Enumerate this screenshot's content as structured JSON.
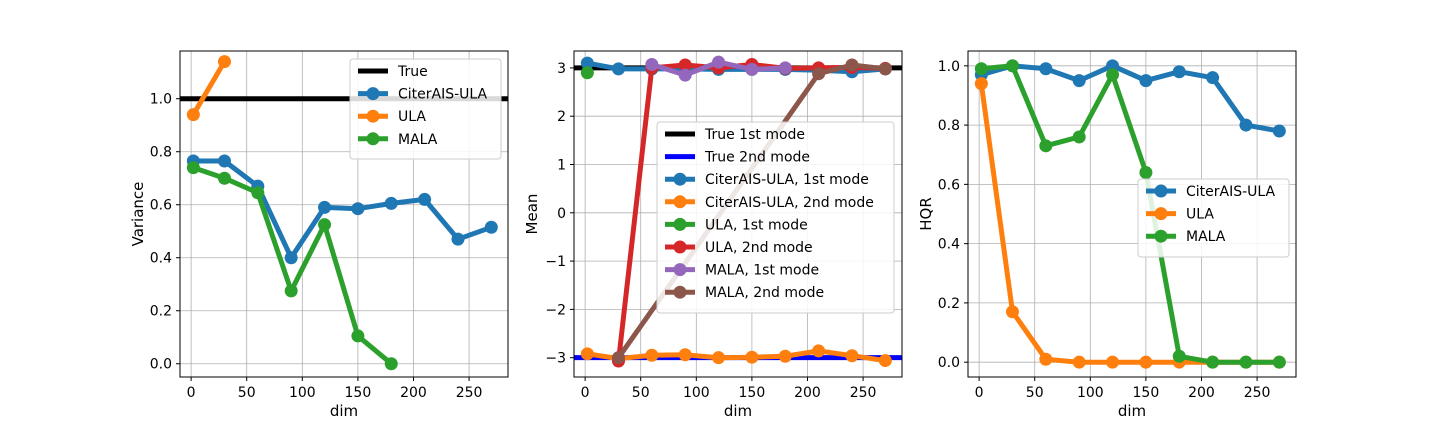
{
  "colors": {
    "true": "#000000",
    "true_second": "#0000ff",
    "blue": "#1f77b4",
    "orange": "#ff7f0e",
    "green": "#2ca02c",
    "red": "#d62728",
    "purple": "#9467bd",
    "brown": "#8c564b"
  },
  "chart_data": [
    {
      "type": "line",
      "xlabel": "dim",
      "ylabel": "Variance",
      "xlim": [
        -10,
        285
      ],
      "ylim": [
        -0.05,
        1.18
      ],
      "xticks": [
        0,
        50,
        100,
        150,
        200,
        250
      ],
      "yticks": [
        0.0,
        0.2,
        0.4,
        0.6,
        0.8,
        1.0
      ],
      "ytick_labels": [
        "0.0",
        "0.2",
        "0.4",
        "0.6",
        "0.8",
        "1.0"
      ],
      "grid": true,
      "legend_position": "upper-right",
      "series": [
        {
          "name": "True",
          "color": "#000000",
          "hline": 1.0
        },
        {
          "name": "CiterAIS-ULA",
          "color": "#1f77b4",
          "x": [
            2,
            30,
            60,
            90,
            120,
            150,
            180,
            210,
            240,
            270
          ],
          "values": [
            0.765,
            0.765,
            0.67,
            0.4,
            0.59,
            0.585,
            0.605,
            0.62,
            0.47,
            0.515
          ]
        },
        {
          "name": "ULA",
          "color": "#ff7f0e",
          "x": [
            2,
            30
          ],
          "values": [
            0.94,
            1.14
          ]
        },
        {
          "name": "MALA",
          "color": "#2ca02c",
          "x": [
            2,
            30,
            60,
            90,
            120,
            150,
            180
          ],
          "values": [
            0.74,
            0.7,
            0.645,
            0.275,
            0.525,
            0.105,
            0.0
          ]
        }
      ]
    },
    {
      "type": "line",
      "xlabel": "dim",
      "ylabel": "Mean",
      "xlim": [
        -10,
        285
      ],
      "ylim": [
        -3.4,
        3.35
      ],
      "xticks": [
        0,
        50,
        100,
        150,
        200,
        250
      ],
      "yticks": [
        -3,
        -2,
        -1,
        0,
        1,
        2,
        3
      ],
      "ytick_labels": [
        "−3",
        "−2",
        "−1",
        "0",
        "1",
        "2",
        "3"
      ],
      "grid": true,
      "legend_position": "center-right",
      "series": [
        {
          "name": "True 1st mode",
          "color": "#000000",
          "hline": 3
        },
        {
          "name": "True 2nd mode",
          "color": "#0000ff",
          "hline": -3
        },
        {
          "name": "CiterAIS-ULA, 1st mode",
          "color": "#1f77b4",
          "x": [
            2,
            30,
            60,
            90,
            120,
            150,
            180,
            210,
            240,
            270
          ],
          "values": [
            3.1,
            2.98,
            2.98,
            2.98,
            2.97,
            2.97,
            2.97,
            2.95,
            2.92,
            2.98
          ]
        },
        {
          "name": "CiterAIS-ULA, 2nd mode",
          "color": "#ff7f0e",
          "x": [
            2,
            30,
            60,
            90,
            120,
            150,
            180,
            210,
            240,
            270
          ],
          "values": [
            -2.92,
            -3.02,
            -2.95,
            -2.94,
            -3.0,
            -2.99,
            -2.97,
            -2.86,
            -2.96,
            -3.06
          ]
        },
        {
          "name": "ULA, 1st mode",
          "color": "#2ca02c",
          "x": [
            2
          ],
          "values": [
            2.9
          ]
        },
        {
          "name": "ULA, 2nd mode",
          "color": "#d62728",
          "x": [
            30,
            60,
            90,
            120,
            150,
            180,
            210,
            240,
            270
          ],
          "values": [
            -3.07,
            3.0,
            3.06,
            3.0,
            3.07,
            2.99,
            3.0,
            3.01,
            2.99
          ]
        },
        {
          "name": "MALA, 1st mode",
          "color": "#9467bd",
          "x": [
            60,
            90,
            120,
            150,
            180
          ],
          "values": [
            3.07,
            2.85,
            3.12,
            2.97,
            3.0
          ]
        },
        {
          "name": "MALA, 2nd mode",
          "color": "#8c564b",
          "x": [
            30,
            210,
            240,
            270
          ],
          "values": [
            -3.0,
            2.88,
            3.06,
            2.98
          ]
        }
      ]
    },
    {
      "type": "line",
      "xlabel": "dim",
      "ylabel": "HQR",
      "xlim": [
        -10,
        285
      ],
      "ylim": [
        -0.05,
        1.05
      ],
      "xticks": [
        0,
        50,
        100,
        150,
        200,
        250
      ],
      "yticks": [
        0.0,
        0.2,
        0.4,
        0.6,
        0.8,
        1.0
      ],
      "ytick_labels": [
        "0.0",
        "0.2",
        "0.4",
        "0.6",
        "0.8",
        "1.0"
      ],
      "grid": true,
      "legend_position": "center-right",
      "series": [
        {
          "name": "CiterAIS-ULA",
          "color": "#1f77b4",
          "x": [
            2,
            30,
            60,
            90,
            120,
            150,
            180,
            210,
            240,
            270
          ],
          "values": [
            0.97,
            1.0,
            0.99,
            0.95,
            1.0,
            0.95,
            0.98,
            0.96,
            0.8,
            0.78
          ]
        },
        {
          "name": "ULA",
          "color": "#ff7f0e",
          "x": [
            2,
            30,
            60,
            90,
            120,
            150,
            180,
            210,
            240,
            270
          ],
          "values": [
            0.94,
            0.17,
            0.01,
            0.0,
            0.0,
            0.0,
            0.0,
            0.0,
            0.0,
            0.0
          ]
        },
        {
          "name": "MALA",
          "color": "#2ca02c",
          "x": [
            2,
            30,
            60,
            90,
            120,
            150,
            180,
            210,
            240,
            270
          ],
          "values": [
            0.99,
            1.0,
            0.73,
            0.76,
            0.97,
            0.64,
            0.02,
            0.0,
            0.0,
            0.0
          ]
        }
      ]
    }
  ]
}
